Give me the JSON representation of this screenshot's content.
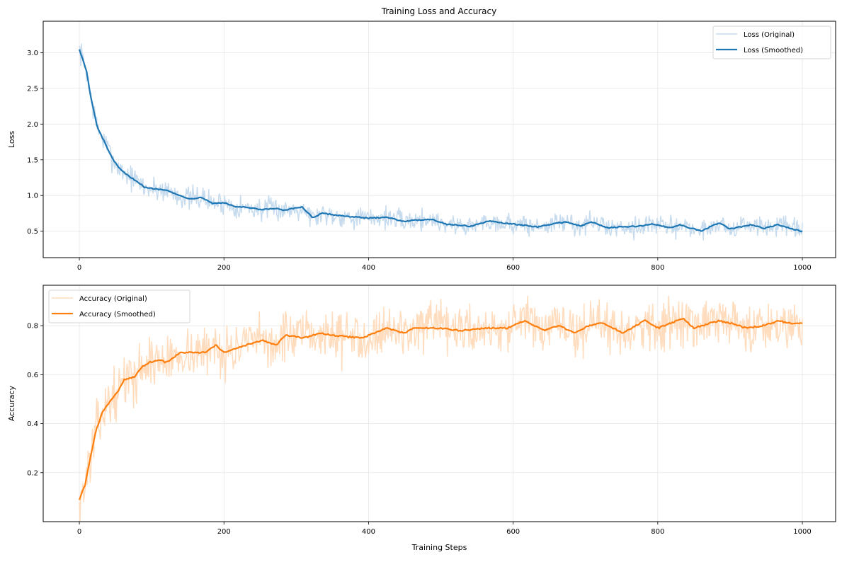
{
  "figure": {
    "title": "Training Loss and Accuracy"
  },
  "chart_data": [
    {
      "type": "line",
      "title": "Training Loss and Accuracy",
      "xlabel": "",
      "ylabel": "Loss",
      "xlim": [
        -50,
        1046
      ],
      "ylim": [
        0.13,
        3.44
      ],
      "grid": true,
      "legend_position": "top-right",
      "xticks": [
        0,
        200,
        400,
        600,
        800,
        1000
      ],
      "xtick_labels": [
        "0",
        "200",
        "400",
        "600",
        "800",
        "1000"
      ],
      "yticks": [
        0.5,
        1.0,
        1.5,
        2.0,
        2.5,
        3.0
      ],
      "ytick_labels": [
        "0.5",
        "1.0",
        "1.5",
        "2.0",
        "2.5",
        "3.0"
      ],
      "colors": {
        "smoothed": "#1f77b4",
        "original": "#c6dbed"
      },
      "series": [
        {
          "name": "Loss (Original)",
          "kind": "original",
          "noise_amplitude": 0.12,
          "noise_seed": 7,
          "note": "noisy raw series around the smoothed trend"
        },
        {
          "name": "Loss (Smoothed)",
          "kind": "smoothed",
          "x": [
            0,
            10,
            15,
            20,
            25,
            25,
            39,
            47,
            57,
            67,
            81,
            91,
            106,
            121,
            135,
            155,
            168,
            184,
            200,
            213,
            233,
            252,
            272,
            282,
            308,
            323,
            336,
            360,
            400,
            399,
            423,
            448,
            487,
            507,
            541,
            566,
            591,
            634,
            664,
            674,
            693,
            708,
            730,
            773,
            793,
            817,
            831,
            860,
            860,
            885,
            900,
            929,
            929,
            948,
            966,
            998,
            1000
          ],
          "y": [
            3.05,
            2.74,
            2.42,
            2.18,
            1.95,
            1.95,
            1.66,
            1.49,
            1.36,
            1.28,
            1.19,
            1.11,
            1.09,
            1.08,
            1.01,
            0.95,
            0.98,
            0.89,
            0.9,
            0.85,
            0.83,
            0.8,
            0.82,
            0.79,
            0.84,
            0.69,
            0.75,
            0.72,
            0.68,
            0.68,
            0.7,
            0.64,
            0.67,
            0.6,
            0.57,
            0.64,
            0.61,
            0.56,
            0.62,
            0.63,
            0.57,
            0.63,
            0.55,
            0.57,
            0.6,
            0.55,
            0.59,
            0.5,
            0.5,
            0.62,
            0.53,
            0.59,
            0.59,
            0.54,
            0.59,
            0.5,
            0.5
          ]
        }
      ]
    },
    {
      "type": "line",
      "title": "",
      "xlabel": "Training Steps",
      "ylabel": "Accuracy",
      "xlim": [
        -50,
        1046
      ],
      "ylim": [
        0.0,
        0.965
      ],
      "grid": true,
      "legend_position": "top-left",
      "xticks": [
        0,
        200,
        400,
        600,
        800,
        1000
      ],
      "xtick_labels": [
        "0",
        "200",
        "400",
        "600",
        "800",
        "1000"
      ],
      "yticks": [
        0.2,
        0.4,
        0.6,
        0.8
      ],
      "ytick_labels": [
        "0.2",
        "0.4",
        "0.6",
        "0.8"
      ],
      "colors": {
        "smoothed": "#ff7f0e",
        "original": "#ffdcbd"
      },
      "series": [
        {
          "name": "Accuracy (Original)",
          "kind": "original",
          "noise_amplitude": 0.07,
          "noise_seed": 13,
          "note": "noisy raw series around the smoothed trend"
        },
        {
          "name": "Accuracy (Smoothed)",
          "kind": "smoothed",
          "x": [
            0,
            8,
            15,
            23,
            32,
            45,
            55,
            62,
            76,
            86,
            96,
            111,
            120,
            140,
            160,
            174,
            189,
            201,
            230,
            254,
            272,
            285,
            311,
            334,
            350,
            391,
            425,
            449,
            463,
            497,
            527,
            563,
            592,
            615,
            615,
            643,
            664,
            684,
            705,
            724,
            752,
            782,
            801,
            835,
            850,
            884,
            901,
            923,
            946,
            968,
            982,
            997,
            1000
          ],
          "y": [
            0.09,
            0.15,
            0.26,
            0.37,
            0.45,
            0.5,
            0.54,
            0.58,
            0.59,
            0.63,
            0.65,
            0.66,
            0.65,
            0.69,
            0.69,
            0.69,
            0.72,
            0.69,
            0.72,
            0.74,
            0.72,
            0.76,
            0.75,
            0.77,
            0.76,
            0.75,
            0.79,
            0.77,
            0.79,
            0.79,
            0.78,
            0.79,
            0.79,
            0.82,
            0.82,
            0.78,
            0.8,
            0.77,
            0.8,
            0.81,
            0.77,
            0.82,
            0.79,
            0.83,
            0.79,
            0.82,
            0.81,
            0.79,
            0.8,
            0.82,
            0.81,
            0.81,
            0.81
          ]
        }
      ]
    }
  ]
}
